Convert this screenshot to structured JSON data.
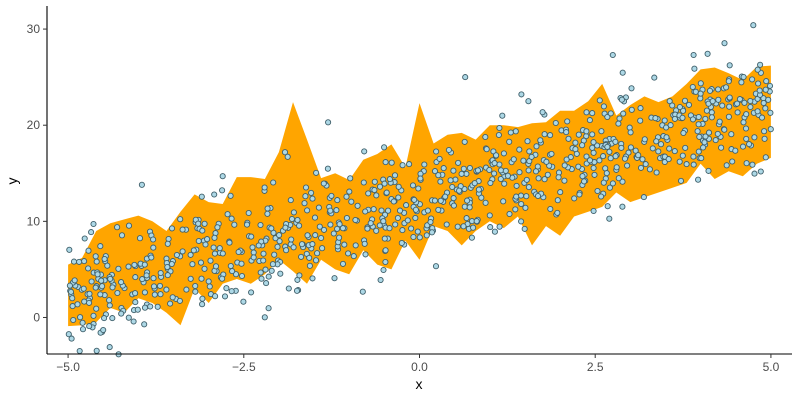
{
  "chart_data": {
    "type": "scatter",
    "title": "",
    "xlabel": "x",
    "ylabel": "y",
    "xlim": [
      -5.3,
      5.3
    ],
    "ylim": [
      -3.8,
      32.4
    ],
    "x_ticks": [
      -5.0,
      -2.5,
      0.0,
      2.5,
      5.0
    ],
    "x_tick_labels": [
      "−5.0",
      "−2.5",
      "0.0",
      "2.5",
      "5.0"
    ],
    "y_ticks": [
      0,
      10,
      20,
      30
    ],
    "y_tick_labels": [
      "0",
      "10",
      "20",
      "30"
    ],
    "grid": false,
    "legend": "none",
    "colors": {
      "band": "#FFA500",
      "point_fill": "#ADD8E6",
      "point_stroke": "#3f5f6a",
      "axis": "#000000"
    },
    "band": {
      "x": [
        -5.0,
        -4.8,
        -4.6,
        -4.4,
        -4.2,
        -4.0,
        -3.8,
        -3.6,
        -3.4,
        -3.2,
        -3.0,
        -2.8,
        -2.6,
        -2.4,
        -2.2,
        -2.0,
        -1.8,
        -1.6,
        -1.4,
        -1.2,
        -1.0,
        -0.8,
        -0.6,
        -0.4,
        -0.2,
        0.0,
        0.2,
        0.4,
        0.6,
        0.8,
        1.0,
        1.2,
        1.4,
        1.6,
        1.8,
        2.0,
        2.2,
        2.4,
        2.6,
        2.8,
        3.0,
        3.2,
        3.4,
        3.6,
        3.8,
        4.0,
        4.2,
        4.4,
        4.6,
        4.8,
        5.0
      ],
      "upper": [
        5.5,
        6.2,
        9.0,
        9.8,
        10.2,
        10.6,
        10.0,
        9.0,
        11.0,
        12.8,
        12.0,
        11.8,
        14.6,
        14.6,
        14.4,
        17.2,
        22.4,
        18.5,
        14.5,
        15.0,
        14.3,
        16.4,
        17.0,
        18.0,
        15.6,
        22.3,
        18.1,
        19.0,
        19.2,
        18.5,
        20.0,
        20.0,
        19.8,
        20.2,
        20.3,
        21.5,
        21.5,
        22.5,
        24.3,
        21.0,
        22.1,
        23.0,
        22.4,
        23.0,
        24.3,
        25.8,
        26.0,
        25.4,
        24.7,
        26.1,
        26.2
      ],
      "lower": [
        -0.9,
        -0.8,
        -0.5,
        1.0,
        0.5,
        2.0,
        1.5,
        0.5,
        -0.8,
        3.0,
        1.5,
        3.5,
        4.0,
        3.5,
        4.5,
        6.0,
        4.8,
        3.5,
        6.0,
        5.0,
        4.5,
        7.0,
        5.5,
        5.0,
        8.0,
        6.0,
        9.5,
        9.0,
        7.5,
        9.0,
        10.0,
        9.3,
        10.5,
        7.5,
        9.5,
        8.5,
        10.5,
        11.0,
        11.5,
        13.0,
        12.0,
        12.5,
        13.0,
        13.5,
        14.0,
        16.0,
        14.4,
        15.2,
        14.7,
        16.0,
        16.6
      ]
    },
    "points": {
      "n": 900,
      "x_range": [
        -5.0,
        5.0
      ],
      "trend": {
        "intercept": 12.0,
        "slope": 2.0
      },
      "spread_sd": 2.9,
      "marked_extremes": [
        [
          -4.95,
          -2.2
        ],
        [
          -4.7,
          -0.9
        ],
        [
          -4.5,
          -1.3
        ],
        [
          -3.95,
          13.8
        ],
        [
          -2.8,
          14.7
        ],
        [
          -1.3,
          20.3
        ],
        [
          0.65,
          25.0
        ],
        [
          1.45,
          23.2
        ],
        [
          1.55,
          22.5
        ],
        [
          2.75,
          27.3
        ],
        [
          3.9,
          27.3
        ],
        [
          4.75,
          30.4
        ]
      ]
    }
  }
}
